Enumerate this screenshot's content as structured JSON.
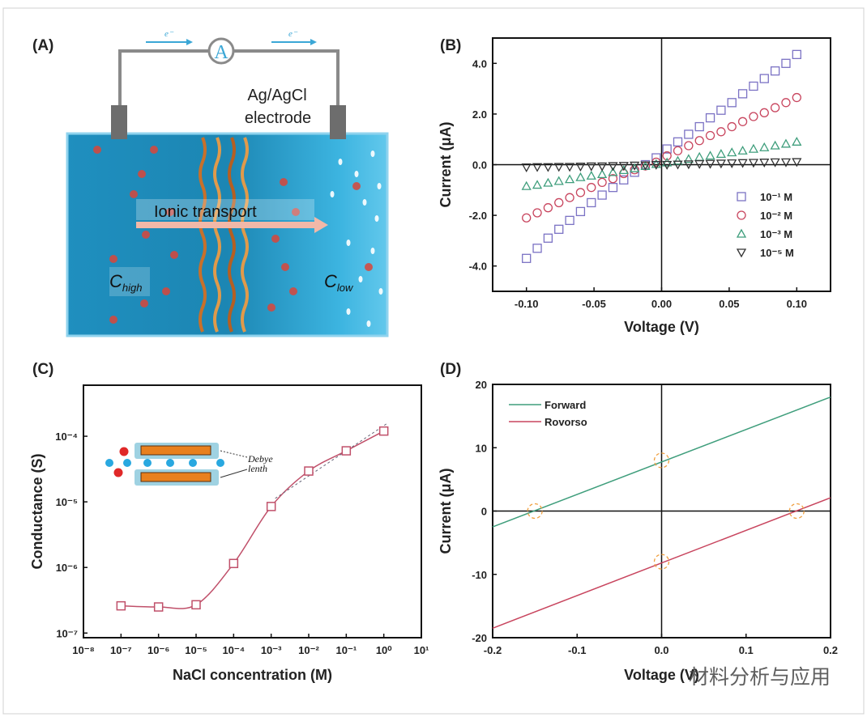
{
  "panel_labels": [
    "(A)",
    "(B)",
    "(C)",
    "(D)"
  ],
  "schematic": {
    "electron_label": "e⁻",
    "ammeter_label": "A",
    "electrode_line1": "Ag/AgCl",
    "electrode_line2": "electrode",
    "transport_label": "Ionic transport",
    "c_high": "C",
    "c_high_sub": "high",
    "c_low": "C",
    "c_low_sub": "low",
    "colors": {
      "water": "#2aa6d2",
      "membrane": "#c8702a",
      "ion": "#d9453a",
      "wire": "#8a8a8a"
    }
  },
  "watermark": "材料分析与应用",
  "chart_data": [
    {
      "panel": "B",
      "type": "scatter",
      "xlabel": "Voltage (V)",
      "ylabel": "Current (μA)",
      "xlim": [
        -0.125,
        0.125
      ],
      "ylim": [
        -5,
        5
      ],
      "xticks": [
        -0.1,
        -0.05,
        0.0,
        0.05,
        0.1
      ],
      "xtick_labels": [
        "-0.10",
        "-0.05",
        "0.00",
        "0.05",
        "0.10"
      ],
      "yticks": [
        -4,
        -2,
        0,
        2,
        4
      ],
      "ytick_labels": [
        "-4.0",
        "-2.0",
        "0.0",
        "2.0",
        "4.0"
      ],
      "legend_position": "bottom-right",
      "x": [
        -0.1,
        -0.092,
        -0.084,
        -0.076,
        -0.068,
        -0.06,
        -0.052,
        -0.044,
        -0.036,
        -0.028,
        -0.02,
        -0.012,
        -0.004,
        0.004,
        0.012,
        0.02,
        0.028,
        0.036,
        0.044,
        0.052,
        0.06,
        0.068,
        0.076,
        0.084,
        0.092,
        0.1
      ],
      "series": [
        {
          "name": "10⁻¹ M",
          "marker": "square",
          "color": "#7b72c4",
          "values": [
            -3.7,
            -3.3,
            -2.9,
            -2.55,
            -2.2,
            -1.85,
            -1.5,
            -1.2,
            -0.9,
            -0.6,
            -0.3,
            0.0,
            0.27,
            0.62,
            0.9,
            1.2,
            1.5,
            1.85,
            2.15,
            2.45,
            2.8,
            3.1,
            3.4,
            3.7,
            4.0,
            4.35
          ]
        },
        {
          "name": "10⁻² M",
          "marker": "circle",
          "color": "#c8455e",
          "values": [
            -2.1,
            -1.9,
            -1.7,
            -1.5,
            -1.3,
            -1.1,
            -0.9,
            -0.7,
            -0.55,
            -0.35,
            -0.2,
            -0.05,
            0.1,
            0.35,
            0.55,
            0.75,
            0.95,
            1.15,
            1.3,
            1.5,
            1.7,
            1.9,
            2.05,
            2.25,
            2.45,
            2.65
          ]
        },
        {
          "name": "10⁻³ M",
          "marker": "triangle-up",
          "color": "#3f9e7c",
          "values": [
            -0.85,
            -0.8,
            -0.72,
            -0.65,
            -0.58,
            -0.5,
            -0.44,
            -0.38,
            -0.3,
            -0.22,
            -0.15,
            -0.06,
            0.02,
            0.08,
            0.15,
            0.22,
            0.3,
            0.35,
            0.42,
            0.48,
            0.55,
            0.62,
            0.68,
            0.75,
            0.82,
            0.9
          ]
        },
        {
          "name": "10⁻⁵ M",
          "marker": "triangle-down",
          "color": "#333333",
          "values": [
            -0.1,
            -0.09,
            -0.09,
            -0.08,
            -0.08,
            -0.07,
            -0.06,
            -0.06,
            -0.05,
            -0.04,
            -0.03,
            -0.02,
            0,
            0,
            0.01,
            0.02,
            0.03,
            0.04,
            0.05,
            0.06,
            0.07,
            0.08,
            0.09,
            0.1,
            0.1,
            0.11
          ]
        }
      ]
    },
    {
      "panel": "C",
      "type": "line",
      "xlabel": "NaCl concentration (M)",
      "ylabel": "Conductance (S)",
      "xscale": "log",
      "yscale": "log",
      "xlim": [
        1e-08,
        10
      ],
      "ylim": [
        8.5e-08,
        0.0006
      ],
      "xticks": [
        1e-08,
        1e-07,
        1e-06,
        1e-05,
        0.0001,
        0.001,
        0.01,
        0.1,
        1,
        10
      ],
      "xtick_labels": [
        "10⁻⁸",
        "10⁻⁷",
        "10⁻⁶",
        "10⁻⁵",
        "10⁻⁴",
        "10⁻³",
        "10⁻²",
        "10⁻¹",
        "10⁰",
        "10¹"
      ],
      "yticks": [
        1e-07,
        1e-06,
        1e-05,
        0.0001
      ],
      "ytick_labels": [
        "10⁻⁷",
        "10⁻⁶",
        "10⁻⁵",
        "10⁻⁴"
      ],
      "color": "#c0506a",
      "marker": "square",
      "x": [
        1e-07,
        1e-06,
        1e-05,
        0.0001,
        0.001,
        0.01,
        0.1,
        1
      ],
      "y": [
        2.6e-07,
        2.5e-07,
        2.7e-07,
        1.15e-06,
        8.5e-06,
        2.95e-05,
        6e-05,
        0.00012
      ],
      "inset": {
        "label_line1": "Debye",
        "label_line2": "lenth"
      }
    },
    {
      "panel": "D",
      "type": "line",
      "xlabel": "Voltage (V)",
      "ylabel": "Current (μA)",
      "xlim": [
        -0.2,
        0.2
      ],
      "ylim": [
        -20,
        20
      ],
      "xticks": [
        -0.2,
        -0.1,
        0.0,
        0.1,
        0.2
      ],
      "xtick_labels": [
        "-0.2",
        "-0.1",
        "0.0",
        "0.1",
        "0.2"
      ],
      "yticks": [
        -20,
        -10,
        0,
        10,
        20
      ],
      "ytick_labels": [
        "-20",
        "-10",
        "0",
        "10",
        "20"
      ],
      "legend_position": "top-left",
      "series": [
        {
          "name": "Forward",
          "color": "#3f9e7c",
          "x": [
            -0.2,
            0.2
          ],
          "values": [
            -2.5,
            18.0
          ]
        },
        {
          "name": "Rovorso",
          "color": "#c8455e",
          "x": [
            -0.2,
            0.2
          ],
          "values": [
            -18.5,
            2.1
          ]
        }
      ],
      "highlights": {
        "color": "#f0a040",
        "points": [
          [
            -0.15,
            0
          ],
          [
            0,
            8
          ],
          [
            0.16,
            0
          ],
          [
            0,
            -8
          ]
        ]
      }
    }
  ]
}
